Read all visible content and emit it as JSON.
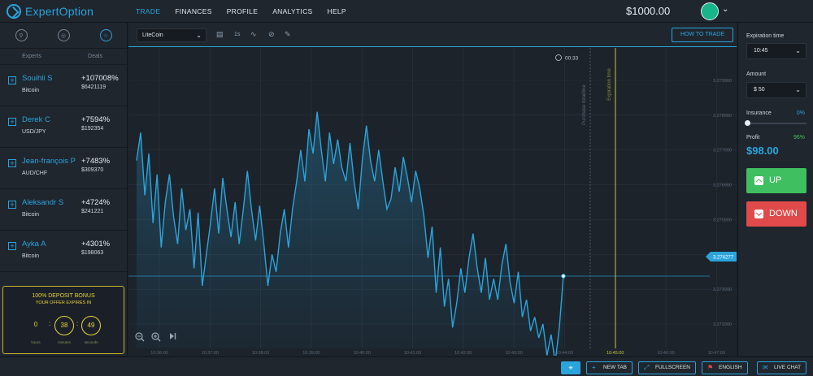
{
  "app": {
    "name": "ExpertOption"
  },
  "nav": [
    {
      "label": "TRADE",
      "active": true
    },
    {
      "label": "FINANCES",
      "active": false
    },
    {
      "label": "PROFILE",
      "active": false
    },
    {
      "label": "ANALYTICS",
      "active": false
    },
    {
      "label": "HELP",
      "active": false
    }
  ],
  "balance": "$1000.00",
  "sidebar": {
    "icons": [
      "search-icon",
      "globe-icon",
      "star-icon"
    ],
    "tabs": [
      "Experts",
      "Deals"
    ],
    "experts": [
      {
        "name": "Souihli S",
        "asset": "Bitcoin",
        "pct": "+107008%",
        "amount": "$6421119"
      },
      {
        "name": "Derek C",
        "asset": "USD/JPY",
        "pct": "+7594%",
        "amount": "$192354"
      },
      {
        "name": "Jean-françois P",
        "asset": "AUD/CHF",
        "pct": "+7483%",
        "amount": "$309370"
      },
      {
        "name": "Aleksandr S",
        "asset": "Bitcoin",
        "pct": "+4724%",
        "amount": "$241221"
      },
      {
        "name": "Ayka A",
        "asset": "Bitcoin",
        "pct": "+4301%",
        "amount": "$198063"
      }
    ],
    "bonus": {
      "title": "100% DEPOSIT BONUS",
      "subtitle": "YOUR OFFER EXPIRES IN",
      "hours": "0",
      "minutes": "38",
      "seconds": "49",
      "hours_label": "hours",
      "minutes_label": "minutes",
      "seconds_label": "seconds"
    }
  },
  "toolbar": {
    "asset": "LiteCoin",
    "timeframe": "1s",
    "how_to_trade": "HOW TO TRADE"
  },
  "chart_data": {
    "type": "line",
    "timer": "00:33",
    "purchase_label": "Purchase deadline",
    "expiration_label": "Expiration time",
    "current_price": "3.274277",
    "y_ticks": [
      "3.279900",
      "3.278900",
      "3.277900",
      "3.276900",
      "3.275900",
      "3.274900",
      "3.273900",
      "3.272900"
    ],
    "x_ticks": [
      "10:36:00",
      "10:37:00",
      "10:38:00",
      "10:39:00",
      "10:40:00",
      "10:41:00",
      "10:42:00",
      "10:43:00",
      "10:44:00",
      "10:45:00",
      "10:46:00",
      "10:47:00"
    ],
    "ylim": [
      3.2722,
      3.2806
    ],
    "series": [
      {
        "values": [
          3.2776,
          3.2784,
          3.2766,
          3.2778,
          3.2758,
          3.2772,
          3.2751,
          3.2764,
          3.2772,
          3.276,
          3.2752,
          3.2768,
          3.2756,
          3.2762,
          3.2745,
          3.2761,
          3.274,
          3.2749,
          3.2758,
          3.2768,
          3.2755,
          3.2771,
          3.2762,
          3.2754,
          3.2764,
          3.2752,
          3.2762,
          3.2773,
          3.2762,
          3.2753,
          3.2763,
          3.2752,
          3.274,
          3.2749,
          3.2744,
          3.2755,
          3.2762,
          3.2751,
          3.2762,
          3.277,
          3.2779,
          3.277,
          3.2785,
          3.2778,
          3.279,
          3.2779,
          3.277,
          3.2784,
          3.2775,
          3.2782,
          3.2774,
          3.277,
          3.2781,
          3.277,
          3.2762,
          3.2776,
          3.2786,
          3.2776,
          3.277,
          3.2779,
          3.277,
          3.2762,
          3.2765,
          3.2774,
          3.2767,
          3.2777,
          3.2771,
          3.2764,
          3.2773,
          3.2768,
          3.276,
          3.2748,
          3.2757,
          3.2738,
          3.2751,
          3.2734,
          3.2742,
          3.2728,
          3.2735,
          3.2745,
          3.2738,
          3.2748,
          3.2755,
          3.2745,
          3.2738,
          3.2748,
          3.2736,
          3.2742,
          3.2736,
          3.2746,
          3.2752,
          3.2741,
          3.2735,
          3.2744,
          3.2731,
          3.2736,
          3.2727,
          3.2731,
          3.2725,
          3.2729,
          3.272,
          3.2726,
          3.2718,
          3.2728,
          3.2743
        ]
      }
    ]
  },
  "right_panel": {
    "expiration_label": "Expiration time",
    "expiration_value": "10:45",
    "amount_label": "Amount",
    "amount_value": "$ 50",
    "insurance_label": "Insurance",
    "insurance_pct": "0%",
    "profit_label": "Profit",
    "profit_pct": "96%",
    "profit_value": "$98.00",
    "up_label": "UP",
    "down_label": "DOWN"
  },
  "footer": {
    "new_tab": "NEW TAB",
    "fullscreen": "FULLSCREEN",
    "language": "ENGLISH",
    "live_chat": "LIVE CHAT"
  },
  "colors": {
    "accent": "#2ba4dc",
    "up": "#3fbf5f",
    "down": "#e04a4a",
    "bonus": "#e6d43a"
  }
}
